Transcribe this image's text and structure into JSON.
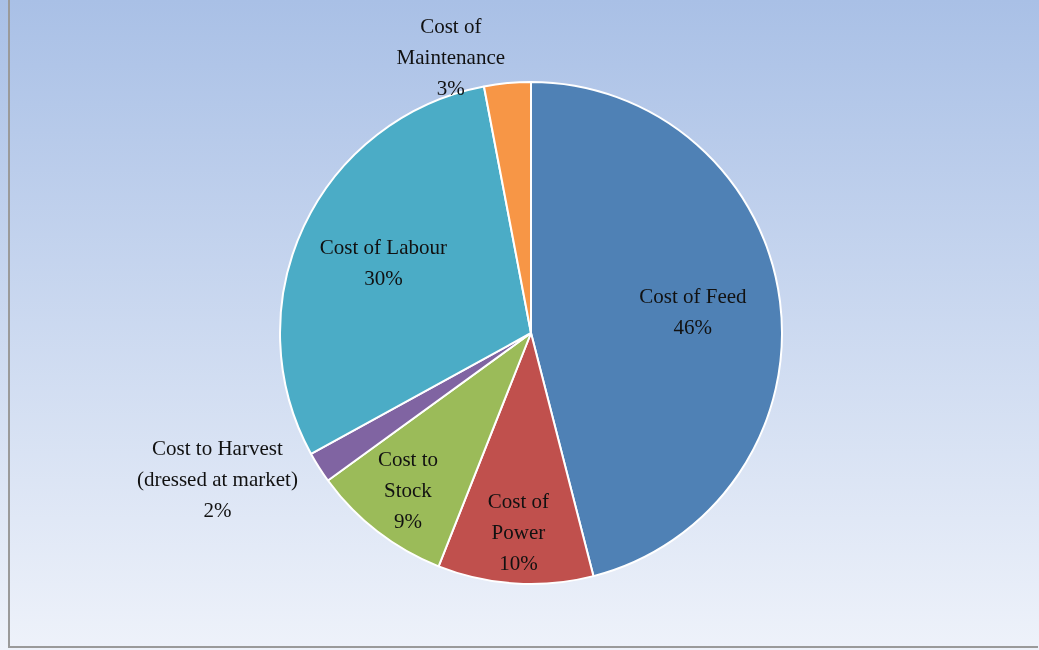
{
  "chart_data": {
    "type": "pie",
    "categories": [
      "Cost of Feed",
      "Cost of Power",
      "Cost to Stock",
      "Cost to Harvest (dressed at market)",
      "Cost of Labour",
      "Cost of Maintenance"
    ],
    "values": [
      46,
      10,
      9,
      2,
      30,
      3
    ],
    "colors": [
      "#4f81b5",
      "#c0504d",
      "#9bbb59",
      "#8064a2",
      "#4bacc6",
      "#f79646"
    ],
    "value_labels": [
      "46%",
      "10%",
      "9%",
      "2%",
      "30%",
      "3%"
    ],
    "legend": false
  }
}
